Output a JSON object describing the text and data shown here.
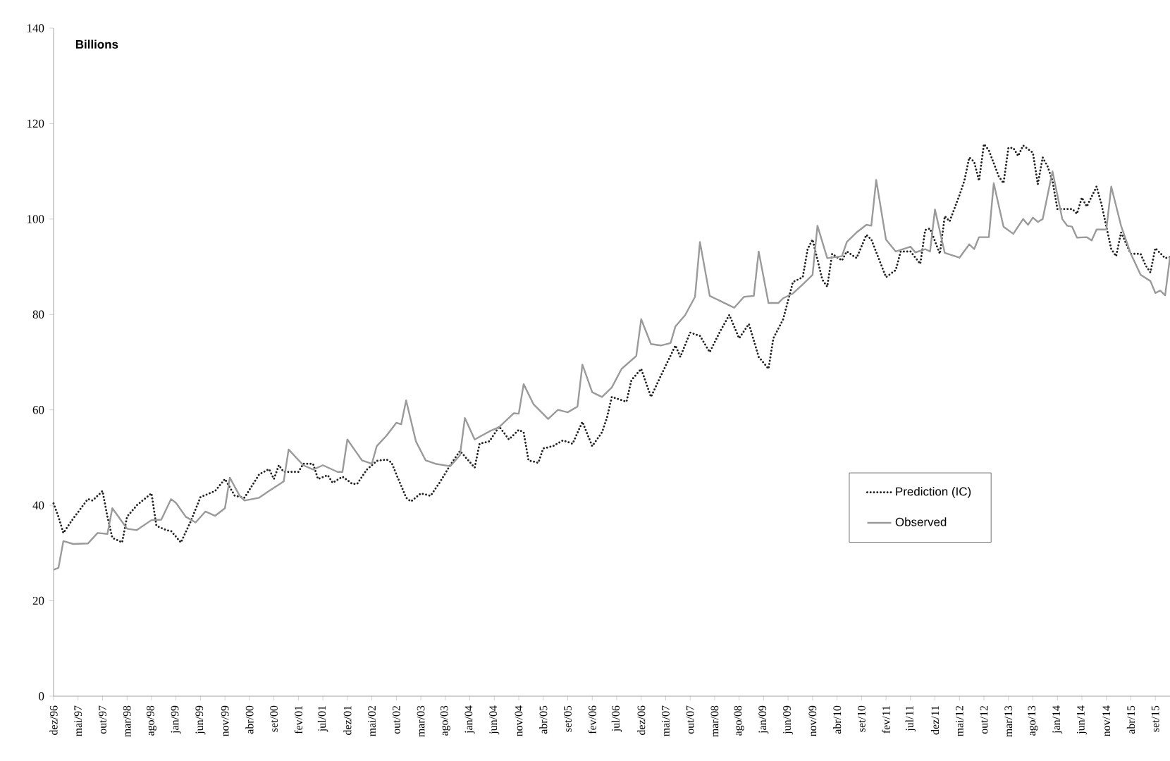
{
  "chart_data": {
    "type": "line",
    "ylabel": "Billions",
    "xlim": [
      "1996-12",
      "2015-12"
    ],
    "ylim": [
      0,
      140
    ],
    "yticks": [
      0,
      20,
      40,
      60,
      80,
      100,
      120,
      140
    ],
    "xticks": [
      {
        "value": "1996-12",
        "label": "dez/96"
      },
      {
        "value": "1997-05",
        "label": "mai/97"
      },
      {
        "value": "1997-10",
        "label": "out/97"
      },
      {
        "value": "1998-03",
        "label": "mar/98"
      },
      {
        "value": "1998-08",
        "label": "ago/98"
      },
      {
        "value": "1999-01",
        "label": "jan/99"
      },
      {
        "value": "1999-06",
        "label": "jun/99"
      },
      {
        "value": "1999-11",
        "label": "nov/99"
      },
      {
        "value": "2000-04",
        "label": "abr/00"
      },
      {
        "value": "2000-09",
        "label": "set/00"
      },
      {
        "value": "2001-02",
        "label": "fev/01"
      },
      {
        "value": "2001-07",
        "label": "jul/01"
      },
      {
        "value": "2001-12",
        "label": "dez/01"
      },
      {
        "value": "2002-05",
        "label": "mai/02"
      },
      {
        "value": "2002-10",
        "label": "out/02"
      },
      {
        "value": "2003-03",
        "label": "mar/03"
      },
      {
        "value": "2003-08",
        "label": "ago/03"
      },
      {
        "value": "2004-01",
        "label": "jan/04"
      },
      {
        "value": "2004-06",
        "label": "jun/04"
      },
      {
        "value": "2004-11",
        "label": "nov/04"
      },
      {
        "value": "2005-04",
        "label": "abr/05"
      },
      {
        "value": "2005-09",
        "label": "set/05"
      },
      {
        "value": "2006-02",
        "label": "fev/06"
      },
      {
        "value": "2006-07",
        "label": "jul/06"
      },
      {
        "value": "2006-12",
        "label": "dez/06"
      },
      {
        "value": "2007-05",
        "label": "mai/07"
      },
      {
        "value": "2007-10",
        "label": "out/07"
      },
      {
        "value": "2008-03",
        "label": "mar/08"
      },
      {
        "value": "2008-08",
        "label": "ago/08"
      },
      {
        "value": "2009-01",
        "label": "jan/09"
      },
      {
        "value": "2009-06",
        "label": "jun/09"
      },
      {
        "value": "2009-11",
        "label": "nov/09"
      },
      {
        "value": "2010-04",
        "label": "abr/10"
      },
      {
        "value": "2010-09",
        "label": "set/10"
      },
      {
        "value": "2011-02",
        "label": "fev/11"
      },
      {
        "value": "2011-07",
        "label": "jul/11"
      },
      {
        "value": "2011-12",
        "label": "dez/11"
      },
      {
        "value": "2012-05",
        "label": "mai/12"
      },
      {
        "value": "2012-10",
        "label": "out/12"
      },
      {
        "value": "2013-03",
        "label": "mar/13"
      },
      {
        "value": "2013-08",
        "label": "ago/13"
      },
      {
        "value": "2014-01",
        "label": "jan/14"
      },
      {
        "value": "2014-06",
        "label": "jun/14"
      },
      {
        "value": "2014-11",
        "label": "nov/14"
      },
      {
        "value": "2015-04",
        "label": "abr/15"
      },
      {
        "value": "2015-09",
        "label": "set/15"
      }
    ],
    "grid": false,
    "legend": "bottom right",
    "marker": "none",
    "series": [
      {
        "name": "Prediction (IC)",
        "color": "#222222",
        "line_style": "dotted",
        "x": [
          "1996-12",
          "1997-01",
          "1997-02",
          "1997-04",
          "1997-07",
          "1997-08",
          "1997-10",
          "1997-11",
          "1997-12",
          "1998-02",
          "1998-03",
          "1998-05",
          "1998-08",
          "1998-09",
          "1998-11",
          "1998-12",
          "1999-02",
          "1999-04",
          "1999-06",
          "1999-09",
          "1999-11",
          "2000-01",
          "2000-03",
          "2000-06",
          "2000-08",
          "2000-09",
          "2000-10",
          "2000-11",
          "2001-02",
          "2001-03",
          "2001-05",
          "2001-06",
          "2001-08",
          "2001-09",
          "2001-11",
          "2002-01",
          "2002-02",
          "2002-04",
          "2002-06",
          "2002-08",
          "2002-09",
          "2002-10",
          "2002-12",
          "2003-01",
          "2003-03",
          "2003-05",
          "2003-07",
          "2003-09",
          "2003-11",
          "2004-02",
          "2004-03",
          "2004-05",
          "2004-07",
          "2004-09",
          "2004-11",
          "2004-12",
          "2005-01",
          "2005-03",
          "2005-04",
          "2005-06",
          "2005-08",
          "2005-10",
          "2005-12",
          "2006-02",
          "2006-04",
          "2006-05",
          "2006-06",
          "2006-09",
          "2006-10",
          "2006-12",
          "2007-02",
          "2007-04",
          "2007-07",
          "2007-08",
          "2007-10",
          "2007-12",
          "2008-02",
          "2008-04",
          "2008-06",
          "2008-08",
          "2008-10",
          "2008-12",
          "2009-02",
          "2009-03",
          "2009-05",
          "2009-07",
          "2009-09",
          "2009-10",
          "2009-11",
          "2010-01",
          "2010-02",
          "2010-03",
          "2010-05",
          "2010-06",
          "2010-08",
          "2010-10",
          "2010-11",
          "2011-02",
          "2011-04",
          "2011-05",
          "2011-07",
          "2011-09",
          "2011-10",
          "2011-11",
          "2012-01",
          "2012-02",
          "2012-03",
          "2012-05",
          "2012-06",
          "2012-07",
          "2012-08",
          "2012-09",
          "2012-10",
          "2012-11",
          "2013-01",
          "2013-02",
          "2013-03",
          "2013-04",
          "2013-05",
          "2013-06",
          "2013-08",
          "2013-09",
          "2013-10",
          "2013-11",
          "2013-12",
          "2014-01",
          "2014-04",
          "2014-05",
          "2014-06",
          "2014-07",
          "2014-09",
          "2014-10",
          "2014-12",
          "2015-01",
          "2015-02",
          "2015-04",
          "2015-06",
          "2015-07",
          "2015-08",
          "2015-09",
          "2015-11",
          "2015-12"
        ],
        "values": [
          40.4,
          37.6,
          34.2,
          37.2,
          41.3,
          41,
          43,
          37.6,
          33.2,
          32.2,
          37.6,
          40,
          42.5,
          35.7,
          34.8,
          34.6,
          32.2,
          36.6,
          41.7,
          43,
          45.5,
          42,
          41.6,
          46.5,
          47.6,
          45.5,
          48.4,
          47,
          47,
          48.7,
          48.7,
          45.5,
          46.3,
          44.7,
          46,
          44.5,
          44.5,
          47.5,
          49.3,
          49.6,
          49,
          46.5,
          41.6,
          40.8,
          42.5,
          42,
          45,
          48.4,
          51.4,
          47.9,
          52.9,
          53.4,
          56.5,
          53.8,
          55.8,
          55.3,
          49.4,
          48.9,
          51.9,
          52.4,
          53.6,
          52.9,
          57.5,
          52.4,
          55.3,
          58.3,
          62.7,
          61.7,
          66.2,
          68.6,
          62.7,
          67.1,
          73.5,
          71.1,
          76.2,
          75.5,
          72.1,
          76.2,
          79.9,
          75,
          78,
          71.1,
          68.6,
          75,
          79,
          86.8,
          87.8,
          93.7,
          95.7,
          87.3,
          85.8,
          92.7,
          91.3,
          93.2,
          91.8,
          96.7,
          95.7,
          87.8,
          89.3,
          93.2,
          93.2,
          90.6,
          97.7,
          98,
          92.7,
          100.6,
          99.5,
          105,
          108,
          112.9,
          112,
          108,
          115.7,
          114.4,
          109,
          107.5,
          114.9,
          114.9,
          113.2,
          115.4,
          113.9,
          107.3,
          112.9,
          111,
          108,
          102.1,
          102.1,
          101.1,
          104.5,
          102.6,
          106.8,
          103.1,
          93.7,
          92.2,
          97.2,
          92.7,
          92.7,
          90.3,
          88.8,
          93.9,
          91.8,
          92
        ]
      },
      {
        "name": "Observed",
        "color": "#9a9a9a",
        "line_style": "solid",
        "x": [
          "1996-12",
          "1997-01",
          "1997-02",
          "1997-04",
          "1997-07",
          "1997-09",
          "1997-11",
          "1997-12",
          "1998-03",
          "1998-05",
          "1998-08",
          "1998-10",
          "1998-12",
          "1999-01",
          "1999-03",
          "1999-05",
          "1999-07",
          "1999-09",
          "1999-11",
          "1999-12",
          "2000-02",
          "2000-03",
          "2000-06",
          "2000-08",
          "2000-11",
          "2000-12",
          "2001-03",
          "2001-05",
          "2001-07",
          "2001-10",
          "2001-11",
          "2001-12",
          "2002-03",
          "2002-05",
          "2002-06",
          "2002-08",
          "2002-10",
          "2002-11",
          "2002-12",
          "2003-02",
          "2003-04",
          "2003-06",
          "2003-09",
          "2003-11",
          "2003-12",
          "2004-02",
          "2004-05",
          "2004-07",
          "2004-10",
          "2004-11",
          "2004-12",
          "2005-02",
          "2005-05",
          "2005-07",
          "2005-09",
          "2005-11",
          "2005-12",
          "2006-02",
          "2006-04",
          "2006-06",
          "2006-08",
          "2006-11",
          "2006-12",
          "2007-02",
          "2007-04",
          "2007-06",
          "2007-07",
          "2007-09",
          "2007-11",
          "2007-12",
          "2008-02",
          "2008-04",
          "2008-06",
          "2008-07",
          "2008-09",
          "2008-11",
          "2008-12",
          "2009-02",
          "2009-04",
          "2009-05",
          "2009-07",
          "2009-09",
          "2009-11",
          "2009-12",
          "2010-02",
          "2010-05",
          "2010-06",
          "2010-08",
          "2010-10",
          "2010-11",
          "2010-12",
          "2011-02",
          "2011-04",
          "2011-07",
          "2011-08",
          "2011-10",
          "2011-11",
          "2011-12",
          "2012-02",
          "2012-05",
          "2012-07",
          "2012-08",
          "2012-09",
          "2012-11",
          "2012-12",
          "2013-02",
          "2013-04",
          "2013-06",
          "2013-07",
          "2013-08",
          "2013-09",
          "2013-10",
          "2013-12",
          "2014-02",
          "2014-03",
          "2014-04",
          "2014-05",
          "2014-07",
          "2014-08",
          "2014-09",
          "2014-11",
          "2014-12",
          "2015-02",
          "2015-04",
          "2015-06",
          "2015-08",
          "2015-09",
          "2015-10",
          "2015-11",
          "2015-12"
        ],
        "values": [
          26.5,
          26.9,
          32.5,
          31.9,
          32,
          34.2,
          34,
          39.4,
          35.1,
          34.8,
          36.9,
          37,
          41.3,
          40.5,
          37.6,
          36.4,
          38.7,
          37.8,
          39.4,
          45.8,
          42,
          41,
          41.6,
          43,
          45,
          51.7,
          48.4,
          47.5,
          48.4,
          47,
          47,
          53.8,
          49.4,
          48.7,
          52.4,
          54.6,
          57.3,
          57,
          62,
          53.4,
          49.4,
          48.7,
          48.2,
          50.5,
          58.3,
          53.8,
          55.5,
          56.4,
          59.3,
          59.2,
          65.4,
          61.2,
          58.1,
          60,
          59.5,
          60.7,
          69.5,
          63.7,
          62.7,
          64.7,
          68.6,
          71.3,
          79,
          73.8,
          73.5,
          74,
          77.5,
          79.9,
          83.7,
          95.2,
          83.9,
          82.9,
          81.9,
          81.4,
          83.7,
          83.9,
          93.2,
          82.4,
          82.4,
          83.4,
          84.4,
          86.3,
          88.3,
          98.6,
          91.8,
          92.2,
          95.2,
          97.2,
          98.8,
          98.6,
          108.2,
          95.7,
          93.2,
          94.2,
          93,
          93.7,
          93.2,
          102,
          92.9,
          91.9,
          94.7,
          93.7,
          96.2,
          96.2,
          107.5,
          98.4,
          96.9,
          100,
          98.8,
          100.3,
          99.4,
          100,
          110,
          100,
          98.6,
          98.4,
          96.1,
          96.2,
          95.5,
          97.8,
          97.8,
          106.8,
          98.6,
          92.7,
          88.3,
          87,
          84.5,
          85,
          84,
          92
        ]
      }
    ]
  }
}
